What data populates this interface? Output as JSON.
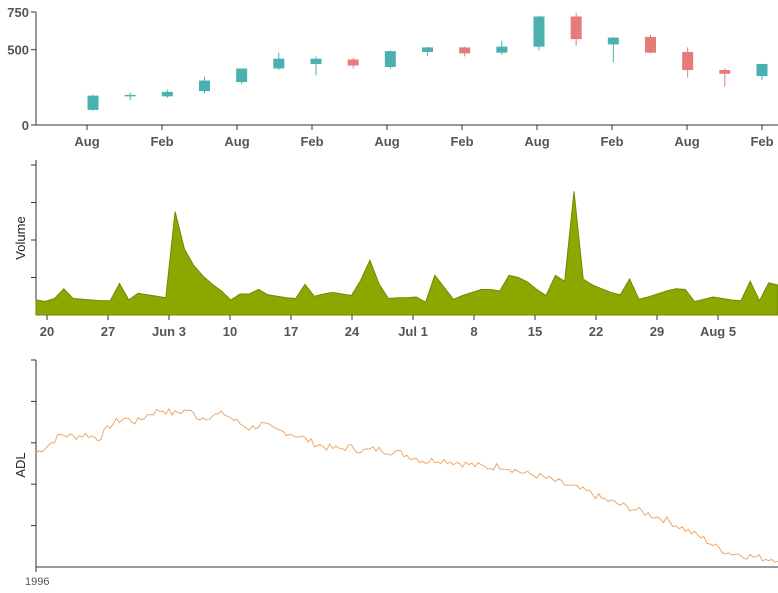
{
  "chart_data": [
    {
      "type": "candlestick",
      "title": "",
      "xlabel": "",
      "ylabel": "",
      "ylim": [
        0,
        750
      ],
      "yticks": [
        0,
        500,
        750
      ],
      "xtick_labels": [
        "Aug",
        "Feb",
        "Aug",
        "Feb",
        "Aug",
        "Feb",
        "Aug",
        "Feb",
        "Aug",
        "Feb"
      ],
      "up_color": "#4bb0b0",
      "down_color": "#e57b7b",
      "candles": [
        {
          "open": 100,
          "high": 200,
          "low": 95,
          "close": 195
        },
        {
          "open": 195,
          "high": 215,
          "low": 165,
          "close": 200
        },
        {
          "open": 190,
          "high": 235,
          "low": 180,
          "close": 220
        },
        {
          "open": 225,
          "high": 320,
          "low": 210,
          "close": 295
        },
        {
          "open": 285,
          "high": 375,
          "low": 270,
          "close": 375
        },
        {
          "open": 375,
          "high": 480,
          "low": 365,
          "close": 440
        },
        {
          "open": 405,
          "high": 455,
          "low": 330,
          "close": 440
        },
        {
          "open": 435,
          "high": 445,
          "low": 375,
          "close": 395
        },
        {
          "open": 385,
          "high": 495,
          "low": 370,
          "close": 490
        },
        {
          "open": 485,
          "high": 520,
          "low": 460,
          "close": 515
        },
        {
          "open": 515,
          "high": 520,
          "low": 455,
          "close": 475
        },
        {
          "open": 480,
          "high": 560,
          "low": 465,
          "close": 520
        },
        {
          "open": 520,
          "high": 725,
          "low": 495,
          "close": 720
        },
        {
          "open": 720,
          "high": 745,
          "low": 525,
          "close": 570
        },
        {
          "open": 535,
          "high": 585,
          "low": 415,
          "close": 580
        },
        {
          "open": 585,
          "high": 600,
          "low": 475,
          "close": 480
        },
        {
          "open": 485,
          "high": 515,
          "low": 315,
          "close": 365
        },
        {
          "open": 365,
          "high": 375,
          "low": 255,
          "close": 340
        },
        {
          "open": 325,
          "high": 405,
          "low": 300,
          "close": 405
        }
      ]
    },
    {
      "type": "area",
      "title": "",
      "xlabel": "",
      "ylabel": "Volume",
      "color": "#8aa800",
      "xtick_labels": [
        "20",
        "27",
        "Jun 3",
        "10",
        "17",
        "24",
        "Jul 1",
        "8",
        "15",
        "22",
        "29",
        "Aug 5"
      ],
      "x_start": "May 18",
      "x_end": "Aug 9",
      "values": [
        0.2,
        0.18,
        0.22,
        0.35,
        0.22,
        0.21,
        0.2,
        0.19,
        0.19,
        0.42,
        0.2,
        0.29,
        0.27,
        0.25,
        0.23,
        1.38,
        0.88,
        0.66,
        0.52,
        0.41,
        0.32,
        0.2,
        0.28,
        0.28,
        0.34,
        0.27,
        0.25,
        0.23,
        0.22,
        0.41,
        0.25,
        0.28,
        0.3,
        0.28,
        0.26,
        0.46,
        0.73,
        0.41,
        0.22,
        0.23,
        0.23,
        0.24,
        0.17,
        0.53,
        0.37,
        0.21,
        0.26,
        0.3,
        0.34,
        0.34,
        0.32,
        0.53,
        0.5,
        0.44,
        0.34,
        0.26,
        0.53,
        0.45,
        1.65,
        0.48,
        0.4,
        0.35,
        0.3,
        0.27,
        0.48,
        0.21,
        0.24,
        0.28,
        0.32,
        0.35,
        0.34,
        0.18,
        0.21,
        0.24,
        0.22,
        0.2,
        0.19,
        0.45,
        0.19,
        0.43,
        0.4
      ]
    },
    {
      "type": "line",
      "title": "",
      "xlabel": "",
      "ylabel": "ADL",
      "color": "#f0a868",
      "xtick_labels": [
        "1996"
      ],
      "values": [
        0.55,
        0.59,
        0.64,
        0.63,
        0.64,
        0.62,
        0.69,
        0.72,
        0.7,
        0.74,
        0.76,
        0.74,
        0.76,
        0.72,
        0.73,
        0.74,
        0.7,
        0.67,
        0.69,
        0.66,
        0.65,
        0.63,
        0.6,
        0.58,
        0.57,
        0.58,
        0.56,
        0.57,
        0.56,
        0.55,
        0.53,
        0.51,
        0.52,
        0.51,
        0.5,
        0.49,
        0.48,
        0.49,
        0.47,
        0.45,
        0.44,
        0.42,
        0.4,
        0.38,
        0.36,
        0.33,
        0.31,
        0.29,
        0.27,
        0.25,
        0.23,
        0.2,
        0.17,
        0.14,
        0.1,
        0.07,
        0.06,
        0.05,
        0.04,
        0.04
      ]
    }
  ]
}
